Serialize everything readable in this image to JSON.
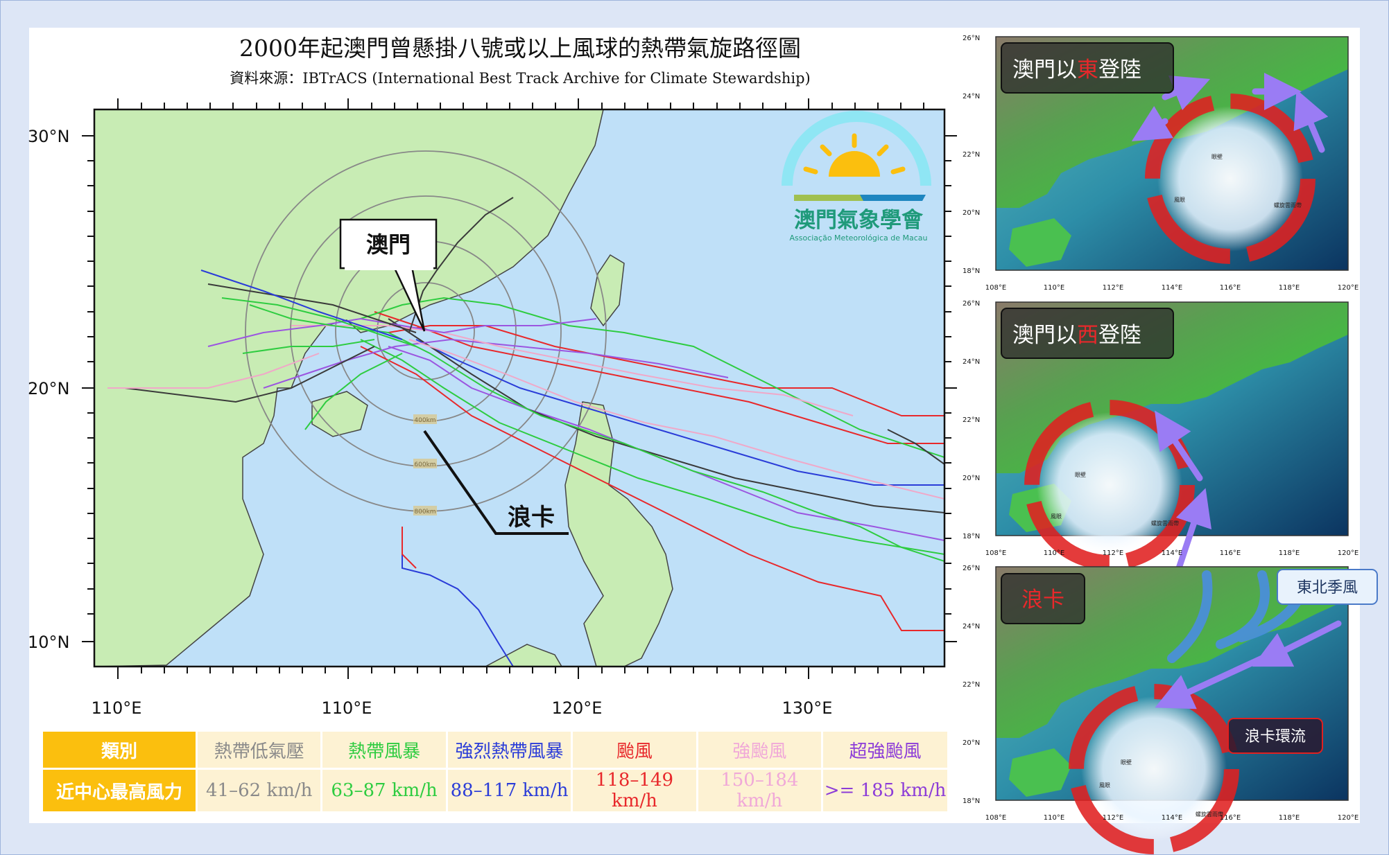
{
  "main_map": {
    "title": "2000年起澳門曾懸掛八號或以上風球的熱帶氣旋路徑圖",
    "source": "資料來源：IBTrACS (International Best Track Archive for Climate Stewardship)",
    "lat_ticks": [
      "30°N",
      "20°N",
      "10°N"
    ],
    "lon_ticks": [
      "110°E",
      "110°E",
      "120°E",
      "130°E"
    ],
    "callout_macau": "澳門",
    "callout_noru": "浪卡",
    "ring_labels": [
      "400km",
      "600km",
      "800km"
    ],
    "logo_name": "澳門氣象學會",
    "logo_sub": "Associação Meteorológica de Macau",
    "track_colors": {
      "depression": "#3a3a3a",
      "storm": "#2ecc40",
      "severe": "#2a3cd8",
      "typhoon": "#e8282b",
      "severe_typhoon": "#f0a8c8",
      "super_typhoon": "#9b55e0"
    }
  },
  "legend": {
    "header_category": "類別",
    "header_wind": "近中心最高風力",
    "categories": [
      {
        "name": "熱帶低氣壓",
        "wind": "41–62 km/h",
        "color": "#8a8a8a"
      },
      {
        "name": "熱帶風暴",
        "wind": "63–87 km/h",
        "color": "#2ecc40"
      },
      {
        "name": "強烈熱帶風暴",
        "wind": "88–117 km/h",
        "color": "#2a3cd8"
      },
      {
        "name": "颱風",
        "wind": "118–149 km/h",
        "color": "#e8282b"
      },
      {
        "name": "強颱風",
        "wind": "150–184 km/h",
        "color": "#f0a8d8"
      },
      {
        "name": "超強颱風",
        "wind": ">= 185 km/h",
        "color": "#8c3cd8"
      }
    ]
  },
  "side_panels": {
    "lat_ticks": [
      "26°N",
      "24°N",
      "22°N",
      "20°N",
      "18°N"
    ],
    "lon_ticks": [
      "108°E",
      "110°E",
      "112°E",
      "114°E",
      "116°E",
      "118°E",
      "120°E"
    ],
    "panel1_label": {
      "pre": "澳門以",
      "key": "東",
      "post": "登陸"
    },
    "panel2_label": {
      "pre": "澳門以",
      "key": "西",
      "post": "登陸"
    },
    "panel3_label": "浪卡",
    "monsoon_label": "東北季風",
    "circulation_label": "浪卡環流",
    "eyewall_label": "眼壁",
    "wind_label": "風眼",
    "rainband_label": "螺旋雲雨帶"
  }
}
